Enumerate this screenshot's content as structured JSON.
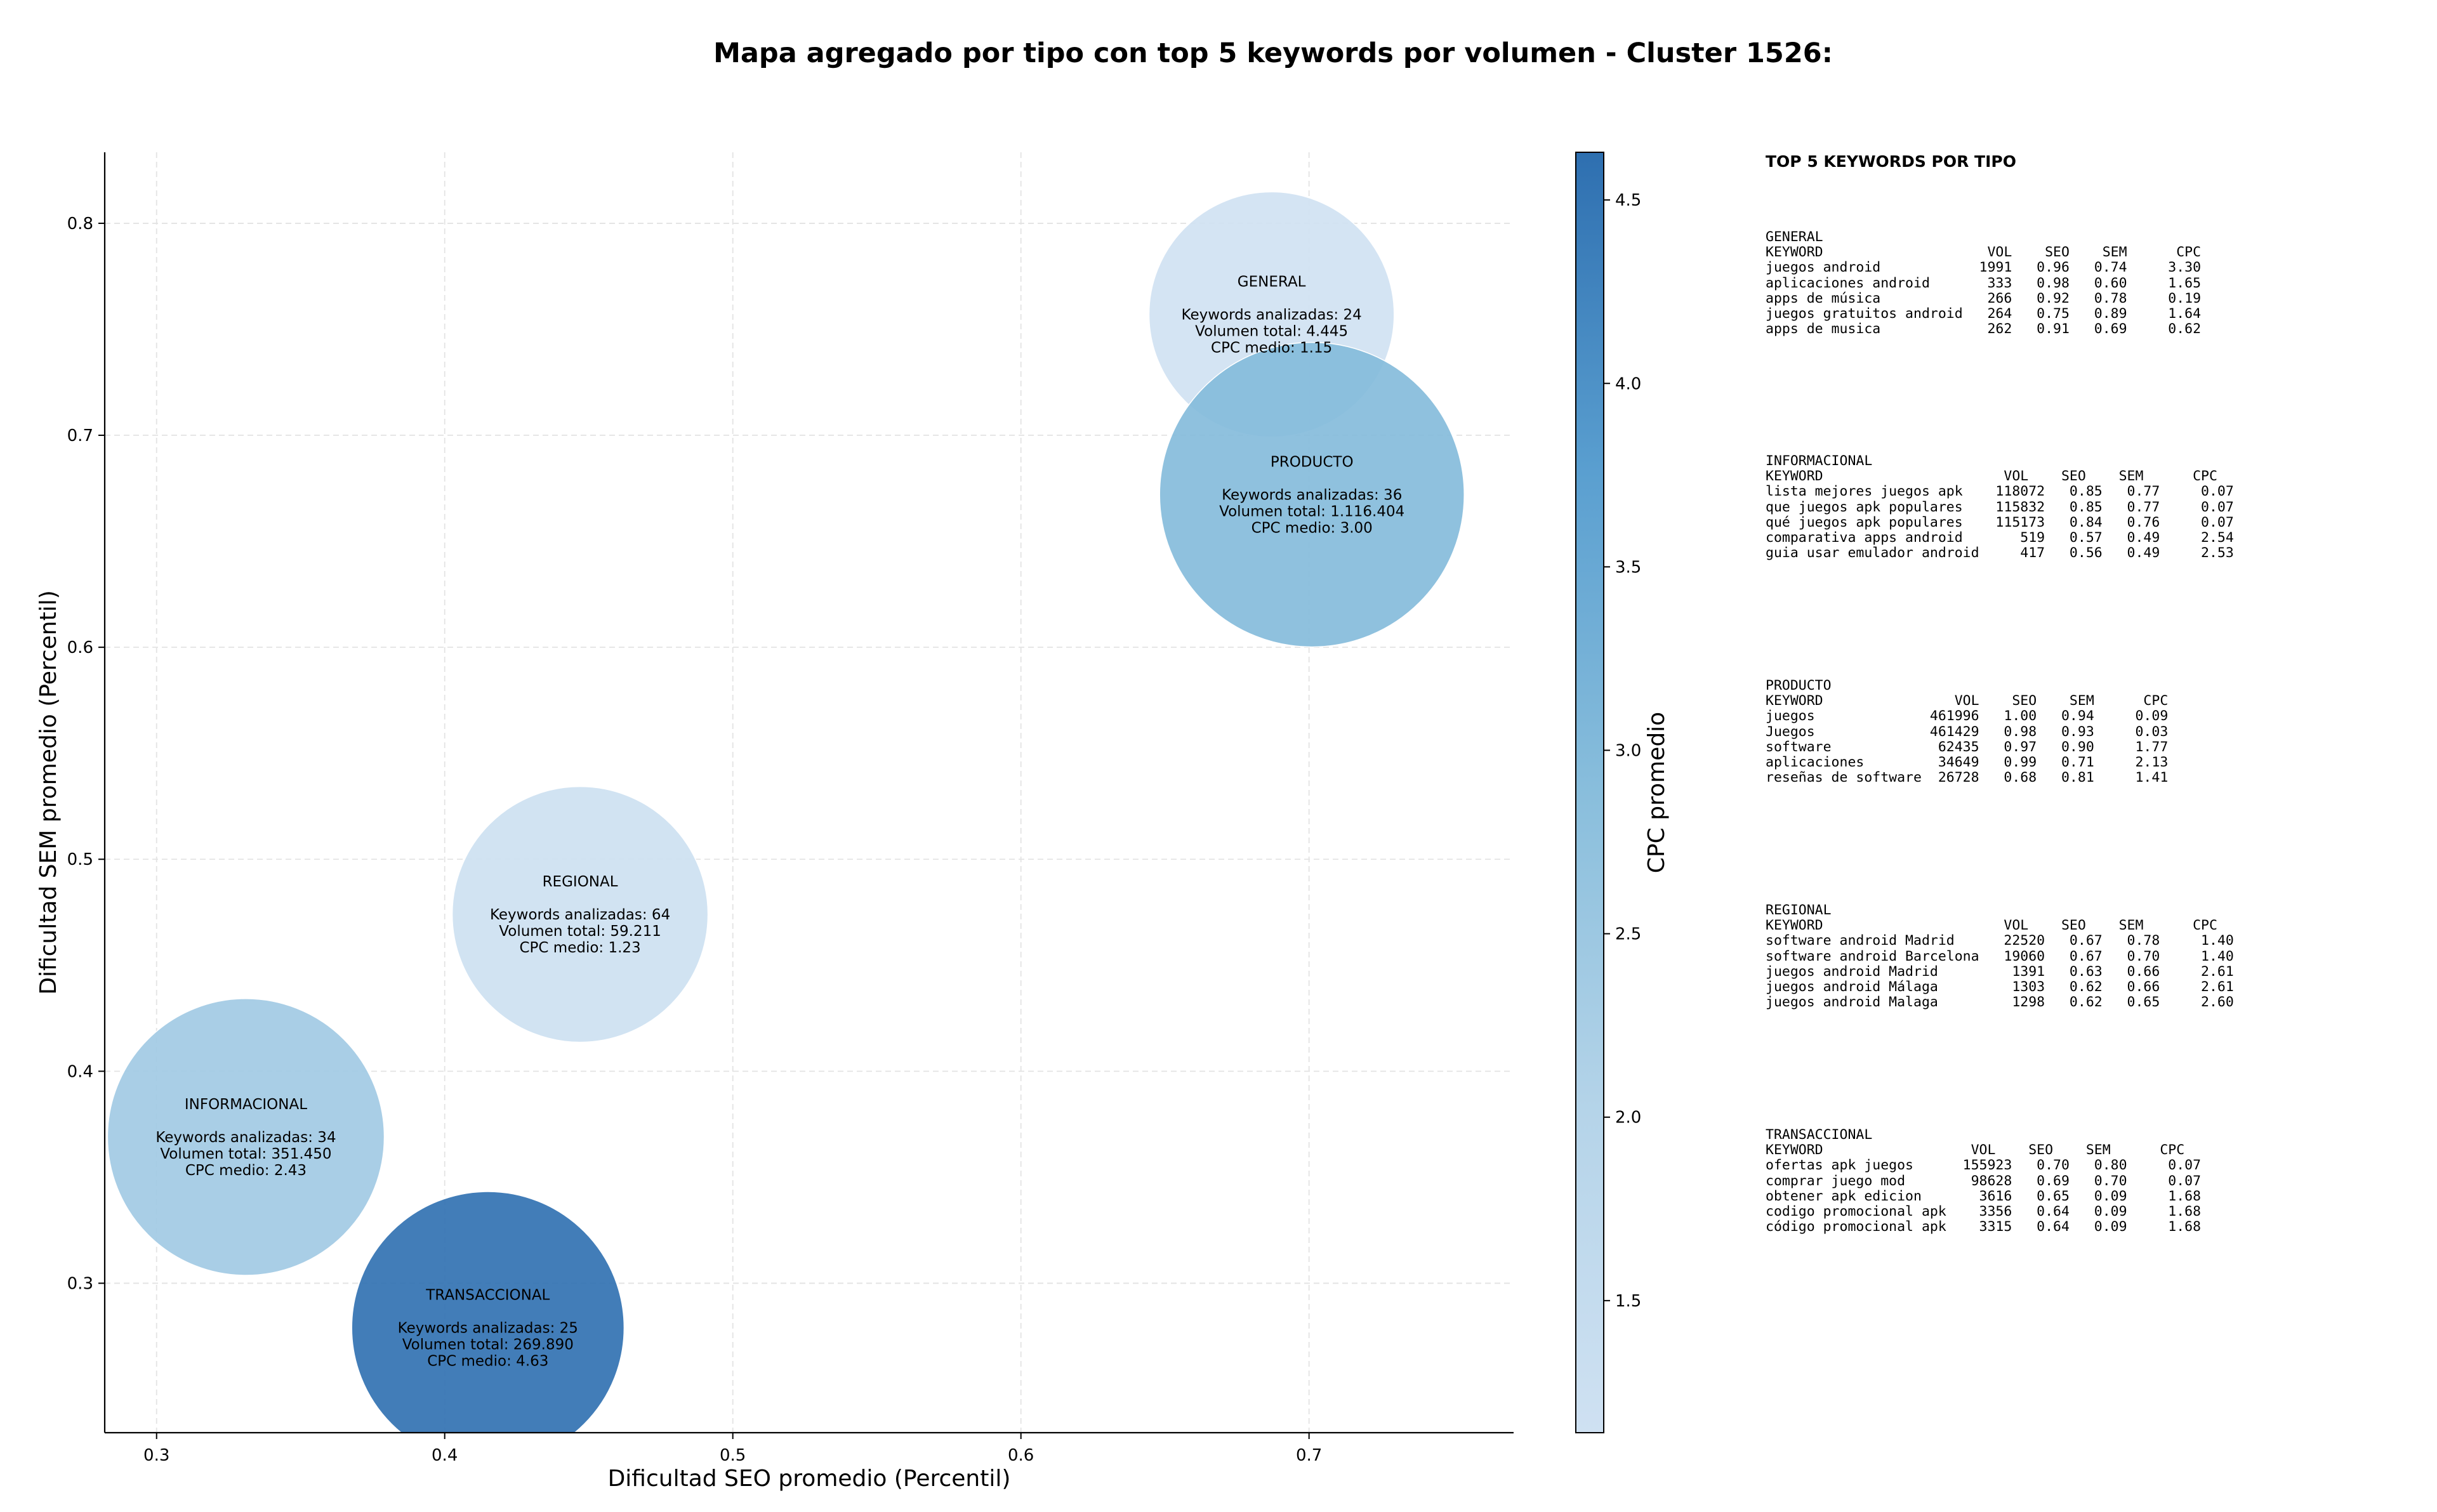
{
  "chart_data": {
    "type": "scatter",
    "title": "Mapa agregado por tipo con top 5 keywords por volumen - Cluster 1526:",
    "xlabel": "Dificultad SEO promedio (Percentil)",
    "ylabel": "Dificultad SEM promedio (Percentil)",
    "xlim": [
      0.282,
      0.771
    ],
    "ylim": [
      0.2295,
      0.8335
    ],
    "xticks": [
      0.3,
      0.4,
      0.5,
      0.6,
      0.7
    ],
    "yticks": [
      0.3,
      0.4,
      0.5,
      0.6,
      0.7,
      0.8
    ],
    "grid": true,
    "colorbar": {
      "label": "CPC promedio",
      "range": [
        1.14,
        4.63
      ],
      "ticks": [
        1.5,
        2.0,
        2.5,
        3.0,
        3.5,
        4.0,
        4.5
      ],
      "colormap": "Blues"
    },
    "points": [
      {
        "label": "GENERAL",
        "x": 0.687,
        "y": 0.757,
        "keywords": 24,
        "volume": 4445,
        "cpc": 1.15,
        "lines": [
          "GENERAL",
          "",
          "Keywords analizadas: 24",
          "Volumen total: 4.445",
          "CPC medio: 1.15"
        ]
      },
      {
        "label": "PRODUCTO",
        "x": 0.701,
        "y": 0.672,
        "keywords": 36,
        "volume": 1116404,
        "cpc": 3.0,
        "lines": [
          "PRODUCTO",
          "",
          "Keywords analizadas: 36",
          "Volumen total: 1.116.404",
          "CPC medio: 3.00"
        ]
      },
      {
        "label": "REGIONAL",
        "x": 0.447,
        "y": 0.474,
        "keywords": 64,
        "volume": 59211,
        "cpc": 1.23,
        "lines": [
          "REGIONAL",
          "",
          "Keywords analizadas: 64",
          "Volumen total: 59.211",
          "CPC medio: 1.23"
        ]
      },
      {
        "label": "INFORMACIONAL",
        "x": 0.331,
        "y": 0.369,
        "keywords": 34,
        "volume": 351450,
        "cpc": 2.43,
        "lines": [
          "INFORMACIONAL",
          "",
          "Keywords analizadas: 34",
          "Volumen total: 351.450",
          "CPC medio: 2.43"
        ]
      },
      {
        "label": "TRANSACCIONAL",
        "x": 0.415,
        "y": 0.279,
        "keywords": 25,
        "volume": 269890,
        "cpc": 4.63,
        "lines": [
          "TRANSACCIONAL",
          "",
          "Keywords analizadas: 25",
          "Volumen total: 269.890",
          "CPC medio: 4.63"
        ]
      }
    ]
  },
  "keywords_panel": {
    "title": "TOP 5 KEYWORDS POR TIPO",
    "blocks": [
      "GENERAL\nKEYWORD                    VOL    SEO    SEM      CPC\njuegos android            1991   0.96   0.74     3.30\naplicaciones android       333   0.98   0.60     1.65\napps de música             266   0.92   0.78     0.19\njuegos gratuitos android   264   0.75   0.89     1.64\napps de musica             262   0.91   0.69     0.62",
      "INFORMACIONAL\nKEYWORD                      VOL    SEO    SEM      CPC\nlista mejores juegos apk    118072   0.85   0.77     0.07\nque juegos apk populares    115832   0.85   0.77     0.07\nqué juegos apk populares    115173   0.84   0.76     0.07\ncomparativa apps android       519   0.57   0.49     2.54\nguia usar emulador android     417   0.56   0.49     2.53",
      "PRODUCTO\nKEYWORD                VOL    SEO    SEM      CPC\njuegos              461996   1.00   0.94     0.09\nJuegos              461429   0.98   0.93     0.03\nsoftware             62435   0.97   0.90     1.77\naplicaciones         34649   0.99   0.71     2.13\nreseñas de software  26728   0.68   0.81     1.41",
      "REGIONAL\nKEYWORD                      VOL    SEO    SEM      CPC\nsoftware android Madrid      22520   0.67   0.78     1.40\nsoftware android Barcelona   19060   0.67   0.70     1.40\njuegos android Madrid         1391   0.63   0.66     2.61\njuegos android Málaga         1303   0.62   0.66     2.61\njuegos android Malaga         1298   0.62   0.65     2.60",
      "TRANSACCIONAL\nKEYWORD                  VOL    SEO    SEM      CPC\nofertas apk juegos      155923   0.70   0.80     0.07\ncomprar juego mod        98628   0.69   0.70     0.07\nobtener apk edicion       3616   0.65   0.09     1.68\ncodigo promocional apk    3356   0.64   0.09     1.68\ncódigo promocional apk    3315   0.64   0.09     1.68"
    ]
  }
}
